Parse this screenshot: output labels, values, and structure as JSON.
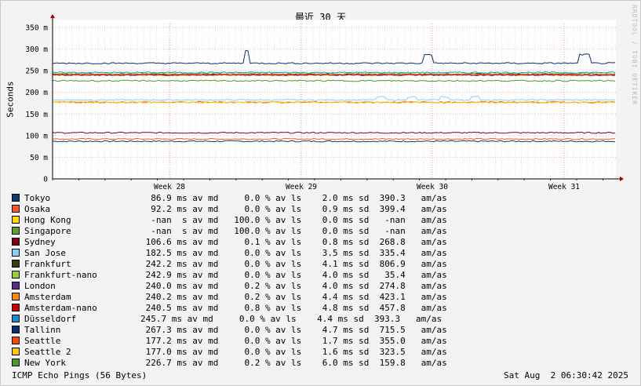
{
  "chart_data": {
    "type": "line",
    "title": "最近 30 天",
    "ylabel": "Seconds",
    "side_label": "RRDTOOL / TOBI OETIKER",
    "ylim": [
      0,
      0.36
    ],
    "yticks": [
      {
        "v": 0,
        "label": "0"
      },
      {
        "v": 0.05,
        "label": "50 m"
      },
      {
        "v": 0.1,
        "label": "100 m"
      },
      {
        "v": 0.15,
        "label": "150 m"
      },
      {
        "v": 0.2,
        "label": "200 m"
      },
      {
        "v": 0.25,
        "label": "250 m"
      },
      {
        "v": 0.3,
        "label": "300 m"
      },
      {
        "v": 0.35,
        "label": "350 m"
      }
    ],
    "xticks": [
      "Week 28",
      "Week 29",
      "Week 30",
      "Week 31"
    ],
    "series": [
      {
        "name": "Tokyo",
        "color": "#0b3d6e",
        "median": 0.0869
      },
      {
        "name": "Osaka",
        "color": "#ff5722",
        "median": 0.0922
      },
      {
        "name": "Hong Kong",
        "color": "#ffd700",
        "median": null
      },
      {
        "name": "Singapore",
        "color": "#5aa02c",
        "median": null
      },
      {
        "name": "Sydney",
        "color": "#7a0019",
        "median": 0.1066
      },
      {
        "name": "San Jose",
        "color": "#87cefa",
        "median": 0.1825
      },
      {
        "name": "Frankfurt",
        "color": "#3a3a0a",
        "median": 0.2422
      },
      {
        "name": "Frankfurt-nano",
        "color": "#9acd32",
        "median": 0.2429
      },
      {
        "name": "London",
        "color": "#5b2c83",
        "median": 0.24
      },
      {
        "name": "Amsterdam",
        "color": "#ff8c00",
        "median": 0.2402
      },
      {
        "name": "Amsterdam-nano",
        "color": "#cc0000",
        "median": 0.2405
      },
      {
        "name": "Düsseldorf",
        "color": "#1e88c8",
        "median": 0.2457
      },
      {
        "name": "Tallinn",
        "color": "#08306b",
        "median": 0.2673
      },
      {
        "name": "Seattle",
        "color": "#ff4500",
        "median": 0.1772
      },
      {
        "name": "Seattle 2",
        "color": "#ffcc00",
        "median": 0.177
      },
      {
        "name": "New York",
        "color": "#4a9a2a",
        "median": 0.2267
      }
    ]
  },
  "legend": [
    {
      "name": "Tokyo",
      "stats": "  86.9 ms av md     0.0 % av ls    2.0 ms sd  390.3   am/as"
    },
    {
      "name": "Osaka",
      "stats": "  92.2 ms av md     0.0 % av ls    0.9 ms sd  399.4   am/as"
    },
    {
      "name": "Hong Kong",
      "stats": "  -nan  s av md   100.0 % av ls    0.0 ms sd   -nan   am/as"
    },
    {
      "name": "Singapore",
      "stats": "  -nan  s av md   100.0 % av ls    0.0 ms sd   -nan   am/as"
    },
    {
      "name": "Sydney",
      "stats": " 106.6 ms av md     0.1 % av ls    0.8 ms sd  268.8   am/as"
    },
    {
      "name": "San Jose",
      "stats": " 182.5 ms av md     0.0 % av ls    3.5 ms sd  335.4   am/as"
    },
    {
      "name": "Frankfurt",
      "stats": " 242.2 ms av md     0.0 % av ls    4.1 ms sd  806.9   am/as"
    },
    {
      "name": "Frankfurt-nano",
      "stats": " 242.9 ms av md     0.0 % av ls    4.0 ms sd   35.4   am/as"
    },
    {
      "name": "London",
      "stats": " 240.0 ms av md     0.2 % av ls    4.0 ms sd  274.8   am/as"
    },
    {
      "name": "Amsterdam",
      "stats": " 240.2 ms av md     0.2 % av ls    4.4 ms sd  423.1   am/as"
    },
    {
      "name": "Amsterdam-nano",
      "stats": " 240.5 ms av md     0.8 % av ls    4.8 ms sd  457.8   am/as"
    },
    {
      "name": "Düsseldorf",
      "stats": "245.7 ms av md     0.0 % av ls    4.4 ms sd  393.3   am/as"
    },
    {
      "name": "Tallinn",
      "stats": " 267.3 ms av md     0.0 % av ls    4.7 ms sd  715.5   am/as"
    },
    {
      "name": "Seattle",
      "stats": " 177.2 ms av md     0.0 % av ls    1.7 ms sd  355.0   am/as"
    },
    {
      "name": "Seattle 2",
      "stats": " 177.0 ms av md     0.0 % av ls    1.6 ms sd  323.5   am/as"
    },
    {
      "name": "New York",
      "stats": " 226.7 ms av md     0.2 % av ls    6.0 ms sd  159.8   am/as"
    }
  ],
  "footer": {
    "left": "ICMP Echo Pings (56 Bytes)",
    "right": "Sat Aug  2 06:30:42 2025"
  }
}
